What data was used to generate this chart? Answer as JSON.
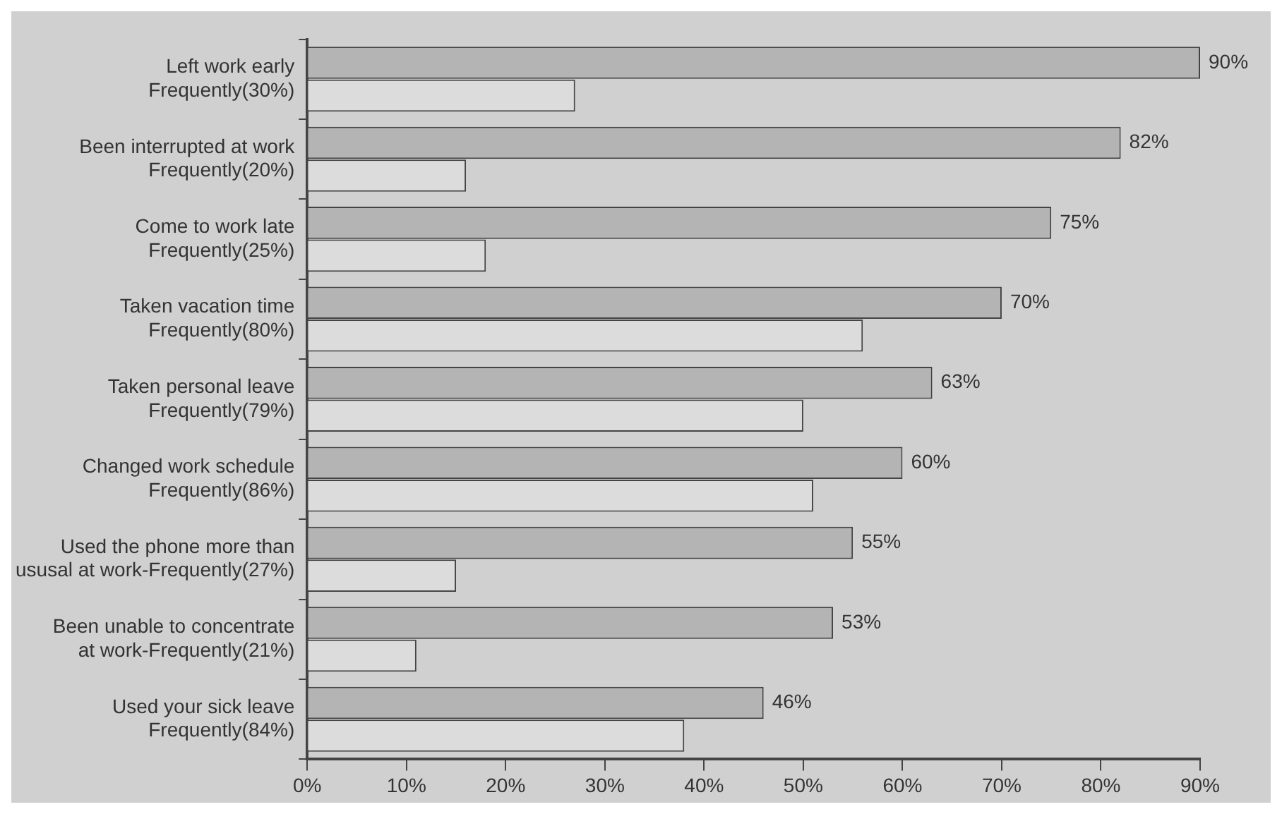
{
  "chart_data": {
    "type": "bar",
    "orientation": "horizontal",
    "categories": [
      "Left work early\nFrequently(30%)",
      "Been interrupted at work\nFrequently(20%)",
      "Come to work late\nFrequently(25%)",
      "Taken vacation time\nFrequently(80%)",
      "Taken personal leave\nFrequently(79%)",
      "Changed work schedule\nFrequently(86%)",
      "Used the phone more than\nususal at work-Frequently(27%)",
      "Been unable to concentrate\nat work-Frequently(21%)",
      "Used your sick leave\nFrequently(84%)"
    ],
    "series": [
      {
        "color": "#b4b4b4",
        "values": [
          90,
          82,
          75,
          70,
          63,
          60,
          55,
          53,
          46
        ],
        "value_labels": [
          "90%",
          "82%",
          "75%",
          "70%",
          "63%",
          "60%",
          "55%",
          "53%",
          "46%"
        ]
      },
      {
        "color": "#dcdcdc",
        "values": [
          27,
          16,
          18,
          56,
          50,
          51,
          15,
          11,
          38
        ]
      }
    ],
    "xlim": [
      0,
      90
    ],
    "xticks": [
      {
        "value": 0,
        "label": "0%"
      },
      {
        "value": 10,
        "label": "10%"
      },
      {
        "value": 20,
        "label": "20%"
      },
      {
        "value": 30,
        "label": "30%"
      },
      {
        "value": 40,
        "label": "40%"
      },
      {
        "value": 50,
        "label": "50%"
      },
      {
        "value": 60,
        "label": "60%"
      },
      {
        "value": 70,
        "label": "70%"
      },
      {
        "value": 80,
        "label": "80%"
      },
      {
        "value": 90,
        "label": "90%"
      }
    ],
    "grid": false,
    "legend": false
  }
}
